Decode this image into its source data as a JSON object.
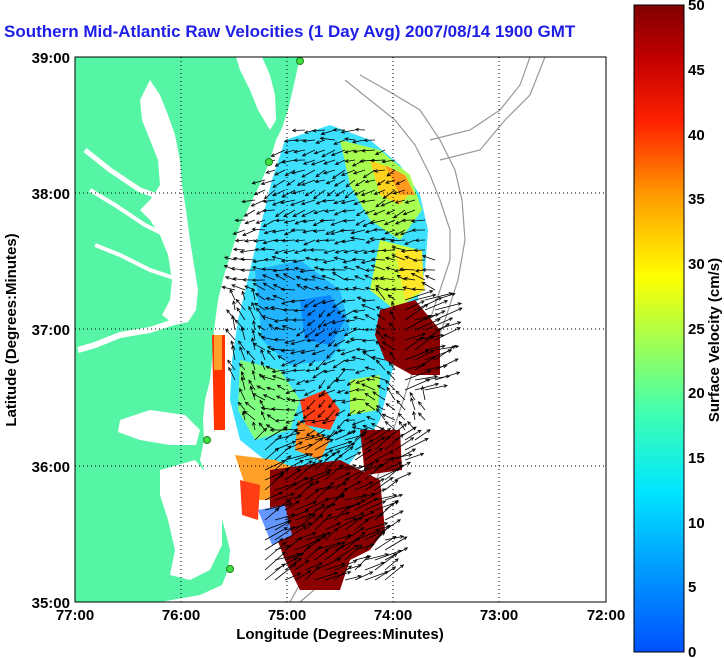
{
  "title": "Southern Mid-Atlantic Raw Velocities (1 Day Avg) 2007/08/14 1900 GMT",
  "axes": {
    "xlabel": "Longitude (Degrees:Minutes)",
    "ylabel": "Latitude (Degrees:Minutes)",
    "x_ticks": [
      "77:00",
      "76:00",
      "75:00",
      "74:00",
      "73:00",
      "72:00"
    ],
    "y_ticks": [
      "39:00",
      "38:00",
      "37:00",
      "36:00",
      "35:00"
    ]
  },
  "colorbar": {
    "label": "Surface Velocity (cm/s)",
    "ticks": [
      "50",
      "45",
      "40",
      "35",
      "30",
      "25",
      "20",
      "15",
      "10",
      "5",
      "0"
    ],
    "min": 0,
    "max": 50,
    "colormap": "jet"
  },
  "colors": {
    "land": "#55f5a5",
    "title": "#1e1ee6",
    "water": "#ffffff",
    "bathymetry": "#999999",
    "vectors": "#000000"
  },
  "grid": "dotted",
  "map_extent": {
    "lon": [
      "77:00",
      "72:00"
    ],
    "lat": [
      "35:00",
      "39:00"
    ]
  }
}
